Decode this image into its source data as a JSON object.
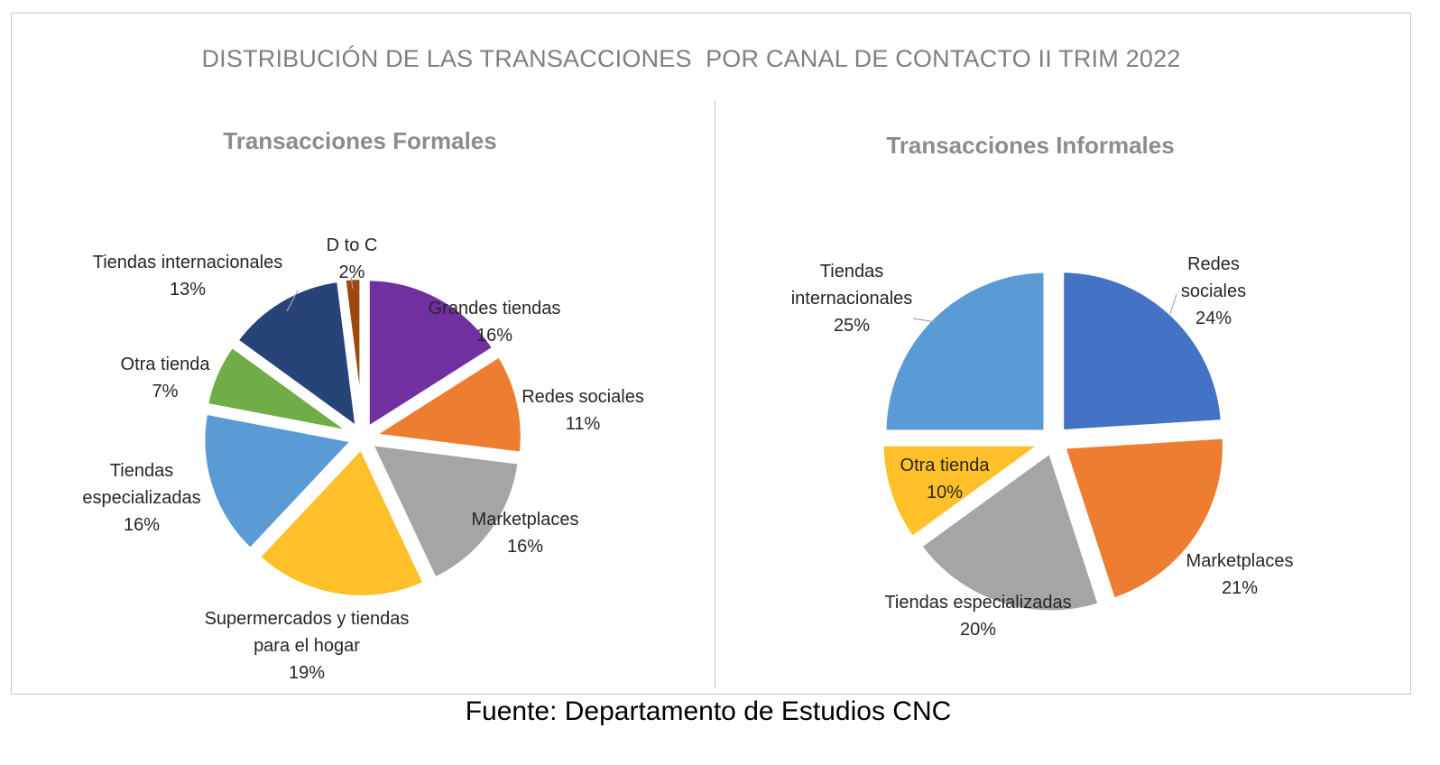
{
  "title": "DISTRIBUCIÓN DE LAS TRANSACCIONES  POR CANAL DE CONTACTO II TRIM 2022",
  "source": "Fuente: Departamento de Estudios CNC",
  "chart_data": [
    {
      "type": "pie",
      "title": "Transacciones Formales",
      "slices": [
        {
          "label": "Grandes tiendas",
          "value": 16,
          "value_label": "16%",
          "color": "#7030a0"
        },
        {
          "label": "Redes sociales",
          "value": 11,
          "value_label": "11%",
          "color": "#ed7d31"
        },
        {
          "label": "Marketplaces",
          "value": 16,
          "value_label": "16%",
          "color": "#a5a5a5"
        },
        {
          "label": "Supermercados y tiendas para el hogar",
          "value": 19,
          "value_label": "19%",
          "color": "#ffc02a"
        },
        {
          "label": "Tiendas especializadas",
          "value": 16,
          "value_label": "16%",
          "color": "#5b9bd5"
        },
        {
          "label": "Otra tienda",
          "value": 7,
          "value_label": "7%",
          "color": "#70ad47"
        },
        {
          "label": "Tiendas internacionales",
          "value": 13,
          "value_label": "13%",
          "color": "#264478"
        },
        {
          "label": "D to C",
          "value": 2,
          "value_label": "2%",
          "color": "#9e480e"
        }
      ]
    },
    {
      "type": "pie",
      "title": "Transacciones Informales",
      "slices": [
        {
          "label": "Redes sociales",
          "value": 24,
          "value_label": "24%",
          "color": "#4472c4"
        },
        {
          "label": "Marketplaces",
          "value": 21,
          "value_label": "21%",
          "color": "#ed7d31"
        },
        {
          "label": "Tiendas especializadas",
          "value": 20,
          "value_label": "20%",
          "color": "#a5a5a5"
        },
        {
          "label": "Otra tienda",
          "value": 10,
          "value_label": "10%",
          "color": "#ffc02a"
        },
        {
          "label": "Tiendas internacionales",
          "value": 25,
          "value_label": "25%",
          "color": "#5b9bd5"
        }
      ]
    }
  ]
}
